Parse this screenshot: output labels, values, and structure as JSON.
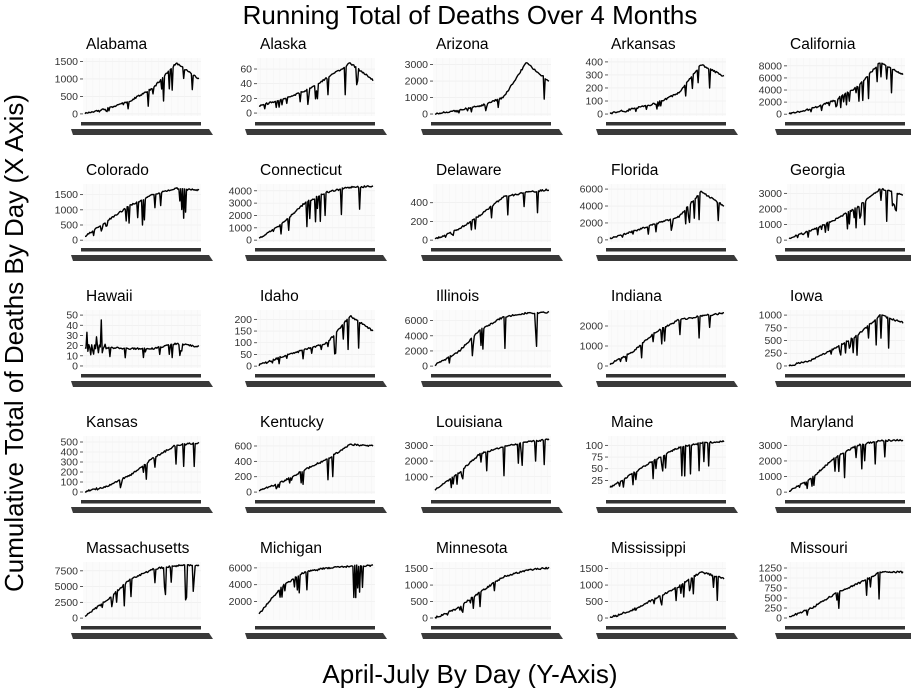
{
  "chart_data": {
    "type": "line",
    "title": "Running Total of Deaths Over 4 Months",
    "xlabel": "April-July By Day (Y-Axis)",
    "ylabel": "Cumulative Total of Deaths By Day (X Axis)",
    "series_color": "#000000",
    "panels": [
      {
        "state": "Alabama",
        "yticks": [
          0,
          500,
          1000,
          1500
        ],
        "ylim": [
          -60,
          1600
        ],
        "ys": [
          15,
          160,
          380,
          750,
          1450,
          1000
        ]
      },
      {
        "state": "Alaska",
        "yticks": [
          0,
          20,
          40,
          60
        ],
        "ylim": [
          -4,
          75
        ],
        "ys": [
          10,
          18,
          30,
          48,
          68,
          45
        ]
      },
      {
        "state": "Arizona",
        "yticks": [
          0,
          1000,
          2000,
          3000
        ],
        "ylim": [
          -120,
          3400
        ],
        "ys": [
          0,
          220,
          500,
          1000,
          3100,
          2000
        ]
      },
      {
        "state": "Arkansas",
        "yticks": [
          0,
          100,
          200,
          300,
          400
        ],
        "ylim": [
          -15,
          430
        ],
        "ys": [
          5,
          40,
          80,
          160,
          380,
          290
        ]
      },
      {
        "state": "California",
        "yticks": [
          0,
          2000,
          4000,
          6000,
          8000
        ],
        "ylim": [
          -300,
          9300
        ],
        "ys": [
          50,
          900,
          2300,
          4500,
          8600,
          6500
        ]
      },
      {
        "state": "Colorado",
        "yticks": [
          0,
          500,
          1000,
          1500
        ],
        "ylim": [
          -60,
          1850
        ],
        "ys": [
          120,
          650,
          1150,
          1500,
          1700,
          1650
        ]
      },
      {
        "state": "Connecticut",
        "yticks": [
          0,
          1000,
          2000,
          3000,
          4000
        ],
        "ylim": [
          -150,
          4550
        ],
        "ys": [
          150,
          1300,
          3000,
          3900,
          4300,
          4350
        ]
      },
      {
        "state": "Delaware",
        "yticks": [
          0,
          200,
          400
        ],
        "ylim": [
          -20,
          600
        ],
        "ys": [
          10,
          110,
          270,
          460,
          510,
          540
        ]
      },
      {
        "state": "Florida",
        "yticks": [
          0,
          2000,
          4000,
          6000
        ],
        "ylim": [
          -250,
          6600
        ],
        "ys": [
          200,
          1000,
          1900,
          2700,
          5700,
          4000
        ]
      },
      {
        "state": "Georgia",
        "yticks": [
          0,
          1000,
          2000,
          3000
        ],
        "ylim": [
          -120,
          3600
        ],
        "ys": [
          100,
          650,
          1300,
          2100,
          3300,
          2900
        ]
      },
      {
        "state": "Hawaii",
        "yticks": [
          0,
          10,
          20,
          30,
          40,
          50
        ],
        "ylim": [
          -2,
          55
        ],
        "ys": [
          8,
          18,
          17,
          17,
          22,
          19
        ]
      },
      {
        "state": "Idaho",
        "yticks": [
          0,
          50,
          100,
          150,
          200
        ],
        "ylim": [
          -8,
          240
        ],
        "ys": [
          5,
          40,
          70,
          100,
          215,
          150
        ]
      },
      {
        "state": "Illinois",
        "yticks": [
          0,
          2000,
          4000,
          6000
        ],
        "ylim": [
          -250,
          7400
        ],
        "ys": [
          150,
          1800,
          4800,
          6500,
          7000,
          7100
        ]
      },
      {
        "state": "Indiana",
        "yticks": [
          0,
          1000,
          2000
        ],
        "ylim": [
          -100,
          2800
        ],
        "ys": [
          100,
          700,
          1700,
          2300,
          2500,
          2650
        ]
      },
      {
        "state": "Iowa",
        "yticks": [
          0,
          250,
          500,
          750,
          1000
        ],
        "ylim": [
          -40,
          1100
        ],
        "ys": [
          5,
          120,
          350,
          600,
          1000,
          850
        ]
      },
      {
        "state": "Kansas",
        "yticks": [
          0,
          100,
          200,
          300,
          400,
          500
        ],
        "ylim": [
          -20,
          560
        ],
        "ys": [
          5,
          60,
          170,
          340,
          470,
          490
        ]
      },
      {
        "state": "Kentucky",
        "yticks": [
          0,
          200,
          400,
          600
        ],
        "ylim": [
          -25,
          730
        ],
        "ys": [
          20,
          130,
          290,
          430,
          620,
          600
        ]
      },
      {
        "state": "Louisiana",
        "yticks": [
          1000,
          2000,
          3000
        ],
        "ylim": [
          -100,
          3600
        ],
        "ys": [
          150,
          1200,
          2500,
          2900,
          3200,
          3400
        ]
      },
      {
        "state": "Maine",
        "yticks": [
          25,
          50,
          75,
          100
        ],
        "ylim": [
          -4,
          120
        ],
        "ys": [
          10,
          40,
          70,
          95,
          105,
          108
        ]
      },
      {
        "state": "Maryland",
        "yticks": [
          0,
          1000,
          2000,
          3000
        ],
        "ylim": [
          -120,
          3600
        ],
        "ys": [
          50,
          900,
          2200,
          3000,
          3300,
          3350
        ]
      },
      {
        "state": "Massachusetts",
        "yticks": [
          0,
          2500,
          5000,
          7500
        ],
        "ylim": [
          -300,
          8900
        ],
        "ys": [
          250,
          3000,
          6200,
          7800,
          8300,
          8400
        ]
      },
      {
        "state": "Michigan",
        "yticks": [
          2000,
          4000,
          6000
        ],
        "ylim": [
          -200,
          6700
        ],
        "ys": [
          500,
          3800,
          5500,
          6000,
          6200,
          6300
        ]
      },
      {
        "state": "Minnesota",
        "yticks": [
          0,
          500,
          1000,
          1500
        ],
        "ylim": [
          -60,
          1700
        ],
        "ys": [
          10,
          300,
          800,
          1250,
          1450,
          1520
        ]
      },
      {
        "state": "Mississippi",
        "yticks": [
          0,
          500,
          1000,
          1500
        ],
        "ylim": [
          -60,
          1700
        ],
        "ys": [
          20,
          250,
          600,
          950,
          1400,
          1200
        ]
      },
      {
        "state": "Missouri",
        "yticks": [
          0,
          250,
          500,
          750,
          1000,
          1250
        ],
        "ylim": [
          -50,
          1400
        ],
        "ys": [
          20,
          250,
          600,
          850,
          1150,
          1150
        ]
      }
    ]
  }
}
